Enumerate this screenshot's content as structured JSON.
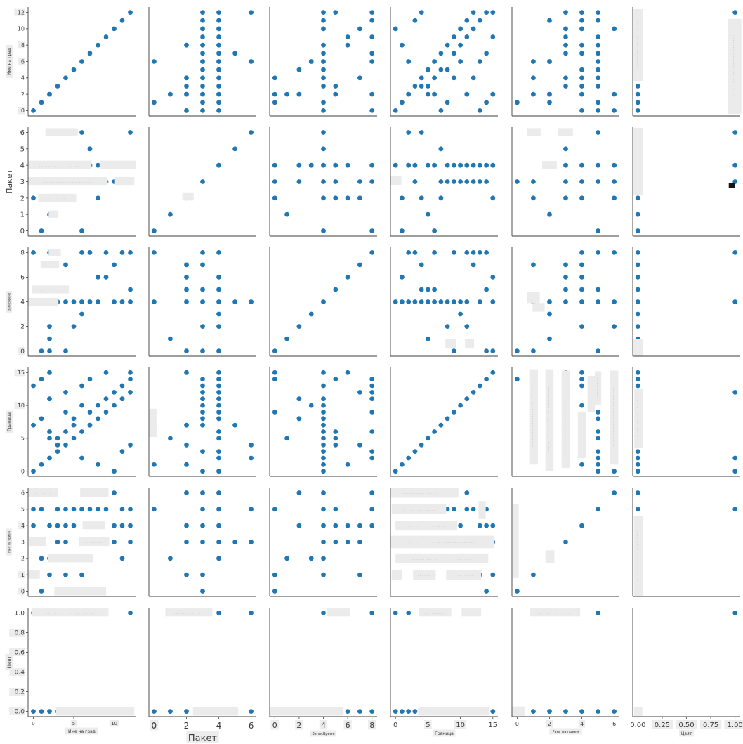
{
  "figure": {
    "dot_color": "#1f77b4",
    "spine_color": "#3d3d3d",
    "tick_color": "#3a3a3a",
    "annotation_bg": "#ebebeb",
    "annotation_text_color": "#8f8f8f",
    "black_patch_color": "#161616",
    "tick_bg": "#ececec",
    "background": "#ffffff"
  },
  "chart_data": {
    "type": "scatter",
    "subtype": "pairplot-matrix",
    "title": "",
    "grid": "6x6, shared axes, ticks only on left column and bottom row",
    "variables": [
      {
        "name": "Име на град",
        "range": [
          -0.65,
          12.65
        ],
        "xticks": [
          0,
          5,
          10
        ],
        "yticks": [
          0,
          2,
          4,
          6,
          8,
          10,
          12
        ],
        "xtick_bg": [
          5,
          10
        ],
        "ytick_bg": [
          12,
          8,
          6,
          0
        ],
        "xdec": 0,
        "ydec": 0
      },
      {
        "name": "Пакет",
        "range": [
          -0.32,
          6.32
        ],
        "xticks": [
          0,
          2,
          4,
          6
        ],
        "yticks": [
          0,
          1,
          2,
          3,
          4,
          5,
          6
        ],
        "xtick_bg": [
          0
        ],
        "ytick_bg": [],
        "xdec": 0,
        "ydec": 0
      },
      {
        "name": "ЗаписВреме",
        "range": [
          -0.42,
          8.42
        ],
        "xticks": [
          0,
          2,
          4,
          6,
          8
        ],
        "yticks": [
          0,
          2,
          4,
          6,
          8
        ],
        "xtick_bg": [
          0,
          2,
          4,
          6,
          8
        ],
        "ytick_bg": [
          0
        ],
        "xdec": 0,
        "ydec": 0
      },
      {
        "name": "Граница",
        "range": [
          -0.78,
          15.78
        ],
        "xticks": [
          0,
          5,
          10,
          15
        ],
        "yticks": [
          0,
          5,
          10,
          15
        ],
        "xtick_bg": [
          5,
          10
        ],
        "ytick_bg": [
          15,
          10
        ],
        "xdec": 0,
        "ydec": 0
      },
      {
        "name": "Ранг на прием",
        "range": [
          -0.32,
          6.32
        ],
        "xticks": [
          0,
          2,
          4,
          6
        ],
        "yticks": [
          0,
          1,
          2,
          3,
          4,
          5,
          6
        ],
        "xtick_bg": [
          2,
          4
        ],
        "ytick_bg": [
          4,
          1,
          0
        ],
        "xdec": 0,
        "ydec": 0
      },
      {
        "name": "Цвят",
        "range": [
          -0.053,
          1.053
        ],
        "xticks": [
          0,
          0.25,
          0.5,
          0.75,
          1
        ],
        "yticks": [
          0,
          0.2,
          0.4,
          0.6,
          0.8,
          1
        ],
        "xtick_bg": [
          0.25,
          0.5,
          0.75,
          1
        ],
        "ytick_bg": [
          0.8,
          0.6,
          0.4,
          0.2,
          0
        ],
        "xdec": 2,
        "ydec": 1
      }
    ],
    "records": [
      [
        0,
        3,
        4,
        0,
        5,
        1
      ],
      [
        0,
        4,
        8,
        13,
        4,
        0
      ],
      [
        0,
        2,
        4,
        7,
        6,
        0
      ],
      [
        1,
        0,
        4,
        1,
        5,
        0
      ],
      [
        1,
        3,
        0,
        14,
        0,
        0
      ],
      [
        1,
        4,
        4,
        8,
        2,
        0
      ],
      [
        2,
        4,
        8,
        2,
        6,
        0
      ],
      [
        2,
        2,
        0,
        15,
        1,
        0
      ],
      [
        2,
        3,
        2,
        11,
        6,
        0
      ],
      [
        2,
        4,
        5,
        6,
        4,
        0
      ],
      [
        2,
        1,
        1,
        5,
        2,
        0
      ],
      [
        3,
        3,
        4,
        3,
        5,
        0
      ],
      [
        3,
        4,
        5,
        5,
        4,
        0
      ],
      [
        3,
        2,
        5,
        4,
        3,
        0
      ],
      [
        4,
        2,
        7,
        4,
        4,
        0
      ],
      [
        4,
        4,
        4,
        6,
        3,
        0
      ],
      [
        4,
        3,
        7,
        12,
        1,
        0
      ],
      [
        4,
        4,
        0,
        9,
        5,
        0
      ],
      [
        5,
        4,
        4,
        5,
        5,
        0
      ],
      [
        5,
        3,
        4,
        7,
        4,
        0
      ],
      [
        5,
        4,
        2,
        8,
        4,
        0
      ],
      [
        6,
        0,
        8,
        6,
        5,
        0
      ],
      [
        6,
        3,
        4,
        13,
        1,
        0
      ],
      [
        6,
        4,
        3,
        10,
        2,
        0
      ],
      [
        6,
        6,
        4,
        2,
        5,
        1
      ],
      [
        7,
        5,
        4,
        7,
        3,
        0
      ],
      [
        7,
        3,
        4,
        9,
        5,
        0
      ],
      [
        7,
        4,
        8,
        14,
        4,
        0
      ],
      [
        8,
        3,
        4,
        8,
        5,
        0
      ],
      [
        8,
        4,
        4,
        10,
        3,
        0
      ],
      [
        8,
        2,
        6,
        1,
        4,
        0
      ],
      [
        9,
        4,
        8,
        9,
        5,
        0
      ],
      [
        9,
        3,
        8,
        11,
        5,
        0
      ],
      [
        9,
        4,
        6,
        15,
        3,
        0
      ],
      [
        10,
        3,
        4,
        10,
        4,
        0
      ],
      [
        10,
        4,
        4,
        0,
        6,
        0
      ],
      [
        10,
        3,
        7,
        12,
        3,
        0
      ],
      [
        11,
        4,
        4,
        11,
        2,
        0
      ],
      [
        11,
        3,
        4,
        13,
        4,
        0
      ],
      [
        11,
        4,
        8,
        3,
        5,
        0
      ],
      [
        12,
        4,
        8,
        12,
        5,
        1
      ],
      [
        12,
        3,
        5,
        14,
        5,
        0
      ],
      [
        12,
        4,
        4,
        15,
        4,
        0
      ],
      [
        12,
        6,
        4,
        4,
        3,
        0
      ]
    ],
    "annotations": [
      {
        "r": 0,
        "c": 5,
        "x": [
          -0.045,
          0.055
        ],
        "y": [
          3.6,
          12.4
        ],
        "t": "v"
      },
      {
        "r": 0,
        "c": 5,
        "x": [
          0.93,
          1.065
        ],
        "y": [
          -0.4,
          11.2
        ],
        "t": "v"
      },
      {
        "r": 1,
        "c": 0,
        "x": [
          1.5,
          5.5
        ],
        "y": [
          5.78,
          6.26
        ],
        "t": "h"
      },
      {
        "r": 1,
        "c": 0,
        "x": [
          -0.65,
          7.2
        ],
        "y": [
          3.76,
          4.28
        ],
        "t": "h"
      },
      {
        "r": 1,
        "c": 0,
        "x": [
          8.2,
          12.65
        ],
        "y": [
          3.76,
          4.28
        ],
        "t": "p"
      },
      {
        "r": 1,
        "c": 0,
        "x": [
          -0.65,
          9.2
        ],
        "y": [
          2.76,
          3.28
        ],
        "t": "h"
      },
      {
        "r": 1,
        "c": 0,
        "x": [
          10.1,
          12.5
        ],
        "y": [
          2.76,
          3.28
        ],
        "t": "p"
      },
      {
        "r": 1,
        "c": 0,
        "x": [
          0.6,
          5.3
        ],
        "y": [
          1.78,
          2.26
        ],
        "t": "h"
      },
      {
        "r": 1,
        "c": 0,
        "x": [
          1.9,
          3.1
        ],
        "y": [
          0.8,
          1.24
        ],
        "t": "p"
      },
      {
        "r": 1,
        "c": 1,
        "x": [
          1.75,
          2.45
        ],
        "y": [
          1.85,
          2.3
        ],
        "t": "p"
      },
      {
        "r": 1,
        "c": 3,
        "x": [
          -0.78,
          0.9
        ],
        "y": [
          2.8,
          3.35
        ],
        "t": "p"
      },
      {
        "r": 1,
        "c": 4,
        "x": [
          0.6,
          1.45
        ],
        "y": [
          5.78,
          6.26
        ],
        "t": "p"
      },
      {
        "r": 1,
        "c": 4,
        "x": [
          2.55,
          3.45
        ],
        "y": [
          5.78,
          6.26
        ],
        "t": "p"
      },
      {
        "r": 1,
        "c": 4,
        "x": [
          1.55,
          2.45
        ],
        "y": [
          3.78,
          4.26
        ],
        "t": "p"
      },
      {
        "r": 1,
        "c": 5,
        "x": [
          -0.045,
          0.055
        ],
        "y": [
          2.2,
          6.28
        ],
        "t": "p"
      },
      {
        "r": 1,
        "c": 5,
        "x": [
          0.935,
          1.0
        ],
        "y": [
          2.6,
          2.92
        ],
        "t": "k"
      },
      {
        "r": 2,
        "c": 0,
        "x": [
          1.9,
          3.4
        ],
        "y": [
          7.7,
          8.3
        ],
        "t": "p"
      },
      {
        "r": 2,
        "c": 0,
        "x": [
          0.9,
          3.2
        ],
        "y": [
          6.7,
          7.3
        ],
        "t": "h"
      },
      {
        "r": 2,
        "c": 0,
        "x": [
          -0.2,
          4.4
        ],
        "y": [
          4.68,
          5.32
        ],
        "t": "h"
      },
      {
        "r": 2,
        "c": 0,
        "x": [
          -0.68,
          3.1
        ],
        "y": [
          3.68,
          4.32
        ],
        "t": "p"
      },
      {
        "r": 2,
        "c": 3,
        "x": [
          7.7,
          9.3
        ],
        "y": [
          0.2,
          1.0
        ],
        "t": "p"
      },
      {
        "r": 2,
        "c": 3,
        "x": [
          10.7,
          12.1
        ],
        "y": [
          0.2,
          1.0
        ],
        "t": "p"
      },
      {
        "r": 2,
        "c": 4,
        "x": [
          0.6,
          1.4
        ],
        "y": [
          3.9,
          4.8
        ],
        "t": "p"
      },
      {
        "r": 2,
        "c": 4,
        "x": [
          0.95,
          1.7
        ],
        "y": [
          3.2,
          3.9
        ],
        "t": "p"
      },
      {
        "r": 2,
        "c": 5,
        "x": [
          -0.045,
          0.05
        ],
        "y": [
          -0.45,
          0.95
        ],
        "t": "p"
      },
      {
        "r": 3,
        "c": 1,
        "x": [
          -0.3,
          0.15
        ],
        "y": [
          5.2,
          9.5
        ],
        "t": "v"
      },
      {
        "r": 3,
        "c": 4,
        "x": [
          0.75,
          1.28
        ],
        "y": [
          1,
          15.5
        ],
        "t": "v"
      },
      {
        "r": 3,
        "c": 4,
        "x": [
          1.75,
          2.25
        ],
        "y": [
          0,
          15.5
        ],
        "t": "v"
      },
      {
        "r": 3,
        "c": 4,
        "x": [
          2.75,
          3.28
        ],
        "y": [
          0.5,
          15.3
        ],
        "t": "v"
      },
      {
        "r": 3,
        "c": 4,
        "x": [
          3.75,
          4.25
        ],
        "y": [
          2,
          9
        ],
        "t": "v"
      },
      {
        "r": 3,
        "c": 4,
        "x": [
          4.35,
          4.8
        ],
        "y": [
          9,
          14.5
        ],
        "t": "p"
      },
      {
        "r": 3,
        "c": 4,
        "x": [
          4.8,
          5.2
        ],
        "y": [
          10,
          15.2
        ],
        "t": "v"
      },
      {
        "r": 3,
        "c": 4,
        "x": [
          5.75,
          6.25
        ],
        "y": [
          1,
          15.3
        ],
        "t": "v"
      },
      {
        "r": 3,
        "c": 5,
        "x": [
          -0.038,
          0.052
        ],
        "y": [
          3.5,
          12.5
        ],
        "t": "v"
      },
      {
        "r": 4,
        "c": 0,
        "x": [
          -0.65,
          3.0
        ],
        "y": [
          5.76,
          6.28
        ],
        "t": "h"
      },
      {
        "r": 4,
        "c": 0,
        "x": [
          5.8,
          9.3
        ],
        "y": [
          5.76,
          6.28
        ],
        "t": "p"
      },
      {
        "r": 4,
        "c": 0,
        "x": [
          6.1,
          8.9
        ],
        "y": [
          3.78,
          4.26
        ],
        "t": "p"
      },
      {
        "r": 4,
        "c": 0,
        "x": [
          -0.5,
          1.6
        ],
        "y": [
          2.76,
          3.28
        ],
        "t": "p"
      },
      {
        "r": 4,
        "c": 0,
        "x": [
          5.7,
          9.4
        ],
        "y": [
          2.76,
          3.28
        ],
        "t": "h"
      },
      {
        "r": 4,
        "c": 0,
        "x": [
          1.8,
          7.4
        ],
        "y": [
          1.76,
          2.28
        ],
        "t": "h"
      },
      {
        "r": 4,
        "c": 0,
        "x": [
          -0.65,
          0.8
        ],
        "y": [
          0.76,
          1.26
        ],
        "t": "p"
      },
      {
        "r": 4,
        "c": 0,
        "x": [
          2.6,
          9.0
        ],
        "y": [
          -0.26,
          0.28
        ],
        "t": "h"
      },
      {
        "r": 4,
        "c": 3,
        "x": [
          -0.7,
          9.7
        ],
        "y": [
          5.7,
          6.3
        ],
        "t": "h"
      },
      {
        "r": 4,
        "c": 3,
        "x": [
          -0.6,
          7.8
        ],
        "y": [
          4.7,
          5.3
        ],
        "t": "h"
      },
      {
        "r": 4,
        "c": 3,
        "x": [
          12.8,
          13.9
        ],
        "y": [
          4.4,
          5.5
        ],
        "t": "p"
      },
      {
        "r": 4,
        "c": 3,
        "x": [
          0,
          9.5
        ],
        "y": [
          3.7,
          4.3
        ],
        "t": "h"
      },
      {
        "r": 4,
        "c": 3,
        "x": [
          -0.75,
          15.2
        ],
        "y": [
          2.62,
          3.38
        ],
        "t": "h"
      },
      {
        "r": 4,
        "c": 3,
        "x": [
          0,
          14.3
        ],
        "y": [
          1.7,
          2.3
        ],
        "t": "h"
      },
      {
        "r": 4,
        "c": 3,
        "x": [
          -0.6,
          1.0
        ],
        "y": [
          0.7,
          1.3
        ],
        "t": "p"
      },
      {
        "r": 4,
        "c": 3,
        "x": [
          2.7,
          6.2
        ],
        "y": [
          0.7,
          1.3
        ],
        "t": "h"
      },
      {
        "r": 4,
        "c": 3,
        "x": [
          7.8,
          13.2
        ],
        "y": [
          0.7,
          1.3
        ],
        "t": "h"
      },
      {
        "r": 4,
        "c": 4,
        "x": [
          -0.27,
          0.1
        ],
        "y": [
          0.8,
          5.3
        ],
        "t": "v"
      },
      {
        "r": 4,
        "c": 4,
        "x": [
          1.75,
          2.3
        ],
        "y": [
          1.7,
          2.5
        ],
        "t": "p"
      },
      {
        "r": 4,
        "c": 5,
        "x": [
          -0.042,
          0.052
        ],
        "y": [
          -0.3,
          4.6
        ],
        "t": "v"
      },
      {
        "r": 5,
        "c": 0,
        "x": [
          -0.2,
          9.3
        ],
        "y": [
          0.965,
          1.045
        ],
        "t": "h"
      },
      {
        "r": 5,
        "c": 0,
        "x": [
          2.8,
          12.5
        ],
        "y": [
          -0.042,
          0.042
        ],
        "t": "h"
      },
      {
        "r": 5,
        "c": 1,
        "x": [
          0.7,
          3.6
        ],
        "y": [
          0.965,
          1.045
        ],
        "t": "h"
      },
      {
        "r": 5,
        "c": 1,
        "x": [
          2.4,
          5.2
        ],
        "y": [
          -0.042,
          0.042
        ],
        "t": "p"
      },
      {
        "r": 5,
        "c": 2,
        "x": [
          4.3,
          6.2
        ],
        "y": [
          0.965,
          1.045
        ],
        "t": "p"
      },
      {
        "r": 5,
        "c": 2,
        "x": [
          -0.4,
          5.6
        ],
        "y": [
          -0.042,
          0.042
        ],
        "t": "h"
      },
      {
        "r": 5,
        "c": 3,
        "x": [
          3.6,
          8.6
        ],
        "y": [
          0.965,
          1.045
        ],
        "t": "h"
      },
      {
        "r": 5,
        "c": 3,
        "x": [
          10.2,
          13.2
        ],
        "y": [
          0.965,
          1.045
        ],
        "t": "p"
      },
      {
        "r": 5,
        "c": 3,
        "x": [
          3.5,
          14.5
        ],
        "y": [
          -0.042,
          0.042
        ],
        "t": "h"
      },
      {
        "r": 5,
        "c": 4,
        "x": [
          0.8,
          3.9
        ],
        "y": [
          0.965,
          1.045
        ],
        "t": "h"
      },
      {
        "r": 5,
        "c": 4,
        "x": [
          -0.3,
          0.45
        ],
        "y": [
          -0.045,
          0.05
        ],
        "t": "p"
      },
      {
        "r": 5,
        "c": 5,
        "x": [
          -0.04,
          0.045
        ],
        "y": [
          -0.045,
          0.045
        ],
        "t": "p"
      }
    ]
  }
}
